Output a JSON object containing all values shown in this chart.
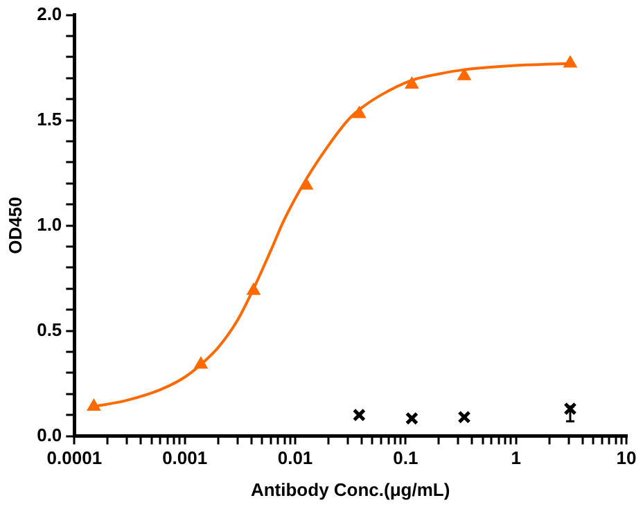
{
  "chart_data": {
    "type": "scatter",
    "xlabel": "Antibody Conc.(μg/mL)",
    "ylabel": "OD450",
    "log": "x",
    "grid": false,
    "legend": false,
    "xlim": [
      0.0001,
      10
    ],
    "ylim": [
      0,
      2
    ],
    "xticks": [
      {
        "value": 0.0001,
        "label": "0.0001"
      },
      {
        "value": 0.0002,
        "label": null
      },
      {
        "value": 0.0003,
        "label": null
      },
      {
        "value": 0.0004,
        "label": null
      },
      {
        "value": 0.0005,
        "label": null
      },
      {
        "value": 0.0006,
        "label": null
      },
      {
        "value": 0.0007,
        "label": null
      },
      {
        "value": 0.0008,
        "label": null
      },
      {
        "value": 0.0009,
        "label": null
      },
      {
        "value": 0.001,
        "label": "0.001"
      },
      {
        "value": 0.002,
        "label": null
      },
      {
        "value": 0.003,
        "label": null
      },
      {
        "value": 0.004,
        "label": null
      },
      {
        "value": 0.005,
        "label": null
      },
      {
        "value": 0.006,
        "label": null
      },
      {
        "value": 0.007,
        "label": null
      },
      {
        "value": 0.008,
        "label": null
      },
      {
        "value": 0.009,
        "label": null
      },
      {
        "value": 0.01,
        "label": "0.01"
      },
      {
        "value": 0.02,
        "label": null
      },
      {
        "value": 0.03,
        "label": null
      },
      {
        "value": 0.04,
        "label": null
      },
      {
        "value": 0.05,
        "label": null
      },
      {
        "value": 0.06,
        "label": null
      },
      {
        "value": 0.07,
        "label": null
      },
      {
        "value": 0.08,
        "label": null
      },
      {
        "value": 0.09,
        "label": null
      },
      {
        "value": 0.1,
        "label": "0.1"
      },
      {
        "value": 0.2,
        "label": null
      },
      {
        "value": 0.3,
        "label": null
      },
      {
        "value": 0.4,
        "label": null
      },
      {
        "value": 0.5,
        "label": null
      },
      {
        "value": 0.6,
        "label": null
      },
      {
        "value": 0.7,
        "label": null
      },
      {
        "value": 0.8,
        "label": null
      },
      {
        "value": 0.9,
        "label": null
      },
      1,
      {
        "value": 2,
        "label": null
      },
      {
        "value": 3,
        "label": null
      },
      {
        "value": 4,
        "label": null
      },
      {
        "value": 5,
        "label": null
      },
      {
        "value": 6,
        "label": null
      },
      {
        "value": 7,
        "label": null
      },
      {
        "value": 8,
        "label": null
      },
      {
        "value": 9,
        "label": null
      },
      10
    ],
    "yticks": [
      {
        "value": 0,
        "label": "0.0"
      },
      {
        "value": 0.1,
        "label": null
      },
      {
        "value": 0.2,
        "label": null
      },
      {
        "value": 0.3,
        "label": null
      },
      {
        "value": 0.4,
        "label": null
      },
      {
        "value": 0.5,
        "label": "0.5"
      },
      {
        "value": 0.6,
        "label": null
      },
      {
        "value": 0.7,
        "label": null
      },
      {
        "value": 0.8,
        "label": null
      },
      {
        "value": 0.9,
        "label": null
      },
      {
        "value": 1,
        "label": "1.0"
      },
      {
        "value": 1.1,
        "label": null
      },
      {
        "value": 1.2,
        "label": null
      },
      {
        "value": 1.3,
        "label": null
      },
      {
        "value": 1.4,
        "label": null
      },
      {
        "value": 1.5,
        "label": "1.5"
      },
      {
        "value": 1.6,
        "label": null
      },
      {
        "value": 1.7,
        "label": null
      },
      {
        "value": 1.8,
        "label": null
      },
      {
        "value": 1.9,
        "label": null
      },
      {
        "value": 2,
        "label": "2.0"
      }
    ],
    "series": [
      {
        "type": "line",
        "marker": "none",
        "color": "#ff6a00",
        "x": [
          0.00015,
          0.0003,
          0.0006,
          0.001,
          0.0014,
          0.002,
          0.003,
          0.0042,
          0.006,
          0.008,
          0.0126,
          0.02,
          0.03,
          0.038,
          0.06,
          0.114,
          0.2,
          0.34,
          1,
          3.1
        ],
        "values": [
          0.14,
          0.17,
          0.22,
          0.28,
          0.34,
          0.42,
          0.55,
          0.7,
          0.88,
          1.03,
          1.22,
          1.38,
          1.5,
          1.55,
          1.62,
          1.69,
          1.72,
          1.74,
          1.76,
          1.77
        ]
      },
      {
        "marker": "triangle",
        "color": "#ff6a00",
        "x": [
          0.00015,
          0.0014,
          0.0042,
          0.0126,
          0.038,
          0.114,
          0.34,
          3.1
        ],
        "values": [
          0.14,
          0.34,
          0.69,
          1.19,
          1.53,
          1.67,
          1.71,
          1.77
        ]
      },
      {
        "marker": "cross",
        "color": "#000000",
        "x": [
          0.038,
          0.114,
          0.34,
          3.1
        ],
        "values": [
          0.1,
          0.084,
          0.09,
          0.13
        ],
        "errors": [
          null,
          null,
          null,
          [
            0.07,
            0.14
          ]
        ]
      }
    ]
  }
}
